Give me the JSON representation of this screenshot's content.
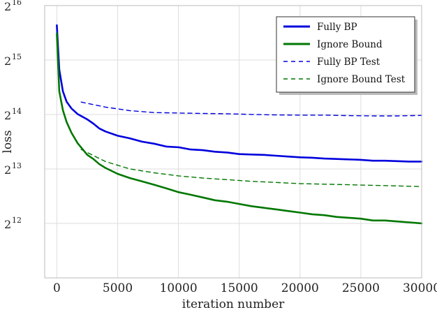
{
  "chart_data": {
    "type": "line",
    "title": "",
    "xlabel": "iteration number",
    "ylabel": "loss",
    "xlim": [
      -1000,
      30000
    ],
    "x_ticks": [
      0,
      5000,
      10000,
      15000,
      20000,
      25000,
      30000
    ],
    "x_tick_labels": [
      "0",
      "5000",
      "10000",
      "15000",
      "20000",
      "25000",
      "30000"
    ],
    "y_scale": "log2",
    "ylim": [
      2048,
      65536
    ],
    "y_ticks": [
      4096,
      8192,
      16384,
      32768,
      65536
    ],
    "y_tick_labels": [
      {
        "base": "2",
        "exp": "12"
      },
      {
        "base": "2",
        "exp": "13"
      },
      {
        "base": "2",
        "exp": "14"
      },
      {
        "base": "2",
        "exp": "15"
      },
      {
        "base": "2",
        "exp": "16"
      }
    ],
    "grid": true,
    "legend_position": "top-right",
    "series": [
      {
        "name": "Fully BP",
        "color": "#0000dd",
        "style": "solid",
        "x": [
          0,
          200,
          500,
          800,
          1200,
          1700,
          2500,
          3000,
          3500,
          4000,
          5000,
          6000,
          7000,
          8000,
          9000,
          10000,
          11000,
          12000,
          13000,
          14000,
          15000,
          16000,
          17000,
          18000,
          19000,
          20000,
          21000,
          22000,
          23000,
          24000,
          25000,
          26000,
          27000,
          28000,
          29000,
          30000
        ],
        "y": [
          51000,
          29000,
          22000,
          19300,
          17700,
          16500,
          15400,
          14600,
          13700,
          13200,
          12500,
          12100,
          11600,
          11300,
          10900,
          10800,
          10500,
          10400,
          10200,
          10100,
          9900,
          9850,
          9800,
          9700,
          9600,
          9500,
          9450,
          9350,
          9300,
          9250,
          9200,
          9100,
          9100,
          9050,
          9000,
          9000
        ]
      },
      {
        "name": "Ignore Bound",
        "color": "#007700",
        "style": "solid",
        "x": [
          0,
          200,
          500,
          800,
          1200,
          1700,
          2500,
          3000,
          3500,
          4000,
          5000,
          6000,
          7000,
          8000,
          9000,
          10000,
          11000,
          12000,
          13000,
          14000,
          15000,
          16000,
          17000,
          18000,
          19000,
          20000,
          21000,
          22000,
          23000,
          24000,
          25000,
          26000,
          27000,
          28000,
          29000,
          30000
        ],
        "y": [
          46000,
          22000,
          17300,
          14900,
          13000,
          11400,
          9800,
          9300,
          8700,
          8300,
          7700,
          7300,
          7000,
          6700,
          6400,
          6100,
          5900,
          5700,
          5500,
          5400,
          5250,
          5100,
          5000,
          4900,
          4800,
          4700,
          4600,
          4550,
          4450,
          4400,
          4350,
          4250,
          4250,
          4200,
          4150,
          4100
        ]
      },
      {
        "name": "Fully BP Test",
        "color": "#0000dd",
        "style": "dashed",
        "x": [
          2000,
          4000,
          6000,
          8000,
          10000,
          12000,
          14000,
          16000,
          18000,
          20000,
          22000,
          24000,
          26000,
          28000,
          30000
        ],
        "y": [
          19200,
          18000,
          17200,
          16800,
          16700,
          16600,
          16550,
          16400,
          16300,
          16250,
          16250,
          16150,
          16100,
          16100,
          16200
        ]
      },
      {
        "name": "Ignore Bound Test",
        "color": "#007700",
        "style": "dashed",
        "x": [
          2000,
          4000,
          6000,
          8000,
          10000,
          12000,
          14000,
          16000,
          18000,
          20000,
          22000,
          24000,
          26000,
          28000,
          30000
        ],
        "y": [
          10500,
          9000,
          8200,
          7800,
          7500,
          7300,
          7150,
          7000,
          6900,
          6800,
          6750,
          6700,
          6650,
          6600,
          6550
        ]
      }
    ]
  }
}
